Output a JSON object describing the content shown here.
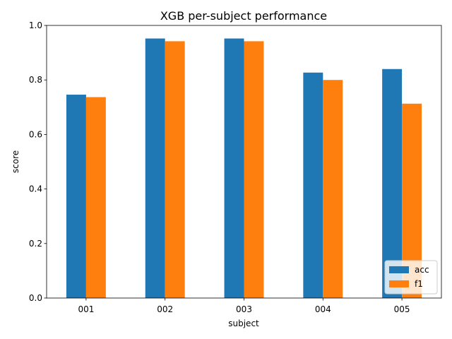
{
  "chart_data": {
    "type": "bar",
    "title": "XGB per-subject performance",
    "xlabel": "subject",
    "ylabel": "score",
    "categories": [
      "001",
      "002",
      "003",
      "004",
      "005"
    ],
    "series": [
      {
        "name": "acc",
        "color": "#1f77b4",
        "values": [
          0.746,
          0.952,
          0.952,
          0.827,
          0.84
        ]
      },
      {
        "name": "f1",
        "color": "#ff7f0e",
        "values": [
          0.737,
          0.942,
          0.942,
          0.8,
          0.713
        ]
      }
    ],
    "ylim": [
      0,
      1.0
    ],
    "yticks": [
      "0.0",
      "0.2",
      "0.4",
      "0.6",
      "0.8",
      "1.0"
    ],
    "grid": false,
    "legend_position": "lower right"
  }
}
